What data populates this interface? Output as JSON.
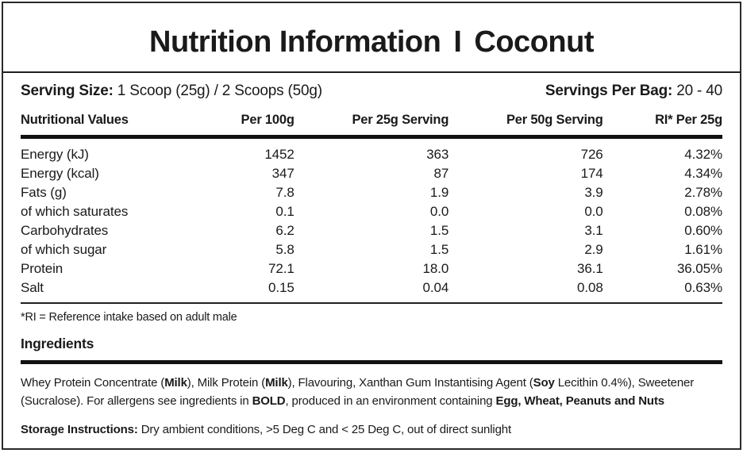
{
  "label": {
    "title": {
      "left": "Nutrition Information",
      "divider": "I",
      "right": "Coconut"
    },
    "serving": {
      "size_label": "Serving Size:",
      "size_value": " 1 Scoop (25g) / 2 Scoops (50g)",
      "per_bag_label": "Servings Per Bag:",
      "per_bag_value": " 20 - 40"
    },
    "table": {
      "headers": [
        "Nutritional Values",
        "Per 100g",
        "Per 25g Serving",
        "Per 50g Serving",
        "RI* Per 25g"
      ],
      "rows": [
        [
          "Energy (kJ)",
          "1452",
          "363",
          "726",
          "4.32%"
        ],
        [
          "Energy (kcal)",
          "347",
          "87",
          "174",
          "4.34%"
        ],
        [
          "Fats (g)",
          "7.8",
          "1.9",
          "3.9",
          "2.78%"
        ],
        [
          "of which saturates",
          "0.1",
          "0.0",
          "0.0",
          "0.08%"
        ],
        [
          "Carbohydrates",
          "6.2",
          "1.5",
          "3.1",
          "0.60%"
        ],
        [
          "of which sugar",
          "5.8",
          "1.5",
          "2.9",
          "1.61%"
        ],
        [
          "Protein",
          "72.1",
          "18.0",
          "36.1",
          "36.05%"
        ],
        [
          "Salt",
          "0.15",
          "0.04",
          "0.08",
          "0.63%"
        ]
      ]
    },
    "ri_note": "*RI = Reference intake based on adult male",
    "ingredients": {
      "heading": "Ingredients",
      "segments": [
        {
          "text": "Whey Protein Concentrate (",
          "bold": false
        },
        {
          "text": "Milk",
          "bold": true
        },
        {
          "text": "), Milk Protein (",
          "bold": false
        },
        {
          "text": "Milk",
          "bold": true
        },
        {
          "text": "), Flavouring, Xanthan Gum Instantising Agent (",
          "bold": false
        },
        {
          "text": "Soy",
          "bold": true
        },
        {
          "text": " Lecithin 0.4%), Sweetener (Sucralose). For allergens see ingredients in ",
          "bold": false
        },
        {
          "text": "BOLD",
          "bold": true
        },
        {
          "text": ", produced in an environment containing ",
          "bold": false
        },
        {
          "text": "Egg, Wheat, Peanuts and Nuts",
          "bold": true
        }
      ]
    },
    "storage": {
      "segments": [
        {
          "text": "Storage Instructions:",
          "bold": true
        },
        {
          "text": " Dry ambient conditions, >5 Deg C and < 25 Deg C,  out of direct sunlight",
          "bold": false
        }
      ]
    },
    "colors": {
      "text": "#1a1a1a",
      "background": "#ffffff",
      "border": "#2a2a2a"
    }
  }
}
